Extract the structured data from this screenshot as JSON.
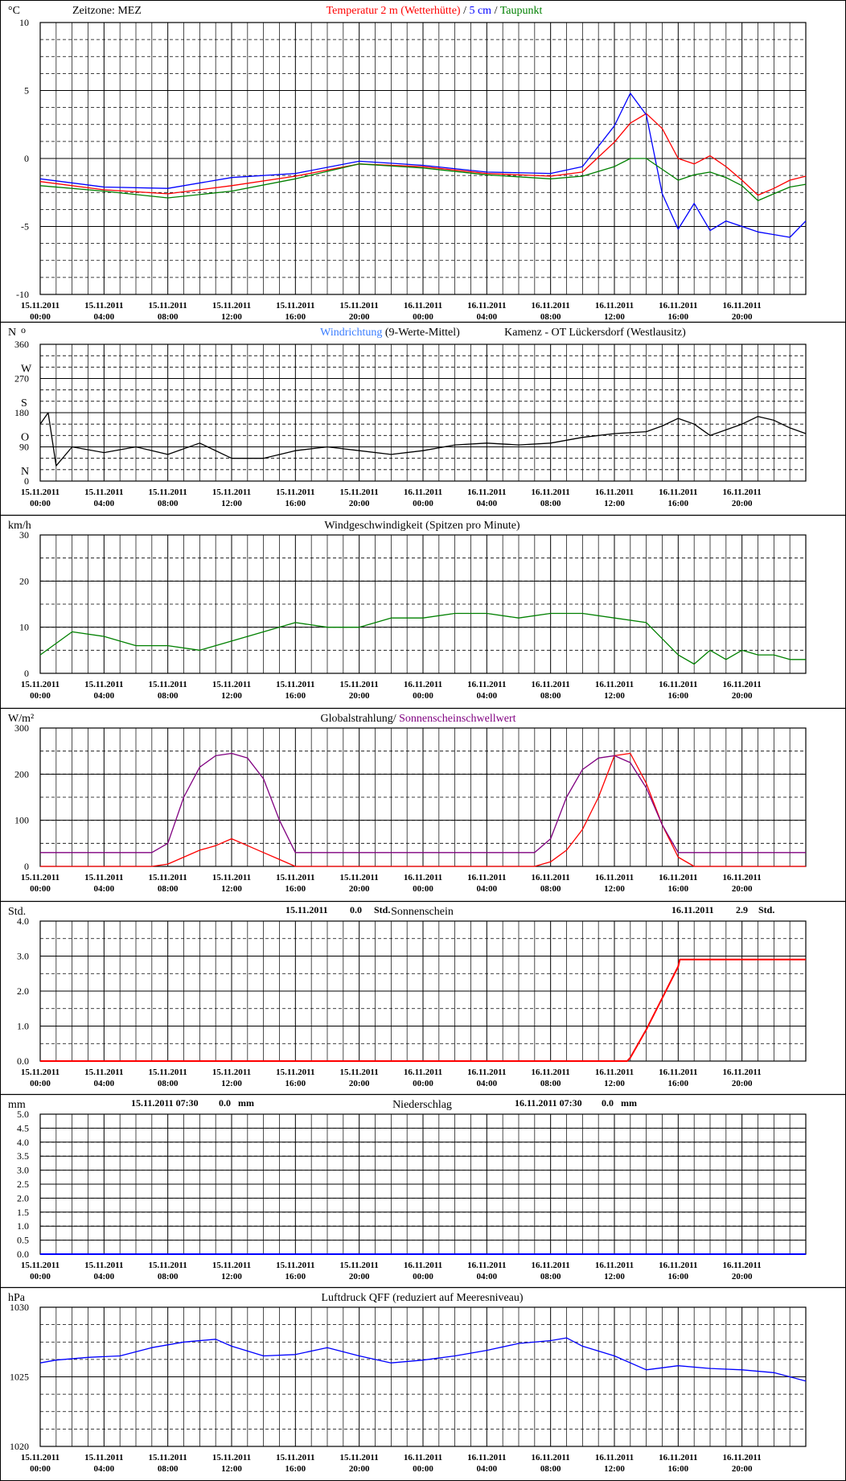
{
  "x_labels": [
    [
      "15.11.2011",
      "00:00"
    ],
    [
      "15.11.2011",
      "04:00"
    ],
    [
      "15.11.2011",
      "08:00"
    ],
    [
      "15.11.2011",
      "12:00"
    ],
    [
      "15.11.2011",
      "16:00"
    ],
    [
      "15.11.2011",
      "20:00"
    ],
    [
      "16.11.2011",
      "00:00"
    ],
    [
      "16.11.2011",
      "04:00"
    ],
    [
      "16.11.2011",
      "08:00"
    ],
    [
      "16.11.2011",
      "12:00"
    ],
    [
      "16.11.2011",
      "16:00"
    ],
    [
      "16.11.2011",
      "20:00"
    ]
  ],
  "colors": {
    "temp_2m": "#ff0000",
    "temp_5cm": "#0000ff",
    "dewpoint": "#008000",
    "wind_dir": "#3a7dff",
    "wind_dir_mean": "#000000",
    "wind_speed": "#008000",
    "radiation": "#ff0000",
    "sun_threshold": "#800080",
    "sunshine": "#ff0000",
    "precip": "#0000ff",
    "pressure": "#0000ff"
  },
  "chart_data": [
    {
      "type": "line",
      "id": "temperature",
      "unit": "°C",
      "zone_label": "Zeitzone: MEZ",
      "title_parts": [
        {
          "text": "Temperatur 2 m (Wetterhütte)",
          "color": "#ff0000"
        },
        {
          "text": "  /  ",
          "color": "#000000"
        },
        {
          "text": "5 cm",
          "color": "#0000ff"
        },
        {
          "text": " / ",
          "color": "#000000"
        },
        {
          "text": "Taupunkt",
          "color": "#008000"
        }
      ],
      "ylim": [
        -10,
        10
      ],
      "yticks": [
        "10",
        "5",
        "0",
        "-5",
        "-10"
      ],
      "x_hours": [
        0,
        4,
        8,
        12,
        16,
        20,
        24,
        28,
        32,
        34,
        36,
        37,
        38,
        39,
        40,
        41,
        42,
        43,
        44,
        45,
        46,
        47,
        48
      ],
      "series": [
        {
          "name": "Temperatur 2 m (Wetterhütte)",
          "color": "#ff0000",
          "values": [
            -1.7,
            -2.3,
            -2.6,
            -2.0,
            -1.3,
            -0.4,
            -0.6,
            -1.1,
            -1.3,
            -1.0,
            1.2,
            2.6,
            3.3,
            2.2,
            0.0,
            -0.4,
            0.2,
            -0.6,
            -1.6,
            -2.7,
            -2.2,
            -1.6,
            -1.3
          ]
        },
        {
          "name": "5 cm",
          "color": "#0000ff",
          "values": [
            -1.5,
            -2.1,
            -2.2,
            -1.4,
            -1.1,
            -0.2,
            -0.5,
            -1.0,
            -1.1,
            -0.6,
            2.4,
            4.8,
            3.2,
            -2.6,
            -5.2,
            -3.3,
            -5.3,
            -4.6,
            -5.0,
            -5.4,
            -5.6,
            -5.8,
            -4.6
          ]
        },
        {
          "name": "Taupunkt",
          "color": "#008000",
          "values": [
            -2.0,
            -2.4,
            -2.9,
            -2.4,
            -1.5,
            -0.4,
            -0.7,
            -1.2,
            -1.5,
            -1.3,
            -0.6,
            0.0,
            0.0,
            -0.8,
            -1.6,
            -1.2,
            -1.0,
            -1.4,
            -2.0,
            -3.1,
            -2.6,
            -2.1,
            -1.9
          ]
        }
      ]
    },
    {
      "type": "line",
      "id": "wind_direction",
      "unit": "N",
      "unit_degree": "o",
      "title_parts": [
        {
          "text": "Windrichtung",
          "color": "#3a7dff"
        },
        {
          "text": " (9-Werte-Mittel)",
          "color": "#000000"
        }
      ],
      "station": "Kamenz - OT Lückersdorf (Westlausitz)",
      "ylim": [
        0,
        360
      ],
      "yticks": [
        "360",
        "270",
        "180",
        "90",
        "0"
      ],
      "compass": [
        "W",
        "S",
        "O",
        "N"
      ],
      "x_hours": [
        0,
        0.5,
        1,
        2,
        4,
        6,
        8,
        10,
        12,
        14,
        16,
        18,
        20,
        22,
        24,
        26,
        28,
        30,
        32,
        34,
        36,
        38,
        39,
        40,
        41,
        42,
        44,
        45,
        46,
        47,
        48
      ],
      "series": [
        {
          "name": "Windrichtung (9-Werte-Mittel)",
          "color": "#000000",
          "values": [
            150,
            180,
            40,
            90,
            75,
            90,
            70,
            100,
            60,
            60,
            80,
            90,
            80,
            70,
            80,
            95,
            100,
            95,
            100,
            115,
            125,
            130,
            145,
            165,
            150,
            120,
            150,
            170,
            160,
            140,
            125
          ]
        }
      ]
    },
    {
      "type": "line",
      "id": "wind_speed",
      "unit": "km/h",
      "title": "Windgeschwindigkeit (Spitzen pro Minute)",
      "ylim": [
        0,
        30
      ],
      "yticks": [
        "30",
        "20",
        "10",
        "0"
      ],
      "x_hours": [
        0,
        2,
        4,
        6,
        8,
        10,
        12,
        14,
        16,
        18,
        20,
        22,
        24,
        26,
        28,
        30,
        32,
        34,
        36,
        38,
        40,
        41,
        42,
        43,
        44,
        45,
        46,
        47,
        48
      ],
      "series": [
        {
          "name": "Windgeschwindigkeit (Spitzen pro Minute)",
          "color": "#008000",
          "values": [
            4,
            9,
            8,
            6,
            6,
            5,
            7,
            9,
            11,
            10,
            10,
            12,
            12,
            13,
            13,
            12,
            13,
            13,
            12,
            11,
            4,
            2,
            5,
            3,
            5,
            4,
            4,
            3,
            3
          ]
        }
      ]
    },
    {
      "type": "line",
      "id": "radiation",
      "unit": "W/m²",
      "title_parts": [
        {
          "text": "Globalstrahlung/",
          "color": "#000000"
        },
        {
          "text": " Sonnenscheinschwellwert",
          "color": "#800080"
        }
      ],
      "ylim": [
        0,
        300
      ],
      "yticks": [
        "300",
        "200",
        "100",
        "0"
      ],
      "x_hours": [
        0,
        7,
        8,
        9,
        10,
        11,
        12,
        13,
        14,
        15,
        16,
        17,
        30,
        31,
        32,
        33,
        34,
        35,
        36,
        37,
        38,
        39,
        40,
        41,
        42,
        48
      ],
      "series": [
        {
          "name": "Globalstrahlung",
          "color": "#ff0000",
          "values": [
            0,
            0,
            5,
            20,
            35,
            45,
            60,
            45,
            30,
            15,
            0,
            0,
            0,
            0,
            10,
            35,
            80,
            150,
            240,
            245,
            180,
            90,
            20,
            0,
            0,
            0
          ]
        },
        {
          "name": "Sonnenscheinschwellwert",
          "color": "#800080",
          "values": [
            30,
            30,
            50,
            150,
            215,
            240,
            245,
            235,
            190,
            100,
            30,
            30,
            30,
            30,
            60,
            150,
            210,
            235,
            240,
            225,
            170,
            90,
            30,
            30,
            30,
            30
          ]
        }
      ]
    },
    {
      "type": "line",
      "id": "sunshine",
      "unit": "Std.",
      "title": "Sonnenschein",
      "left_summary": {
        "date": "15.11.2011",
        "value": "0.0",
        "unit": "Std."
      },
      "right_summary": {
        "date": "16.11.2011",
        "value": "2.9",
        "unit": "Std."
      },
      "ylim": [
        0,
        4
      ],
      "yticks": [
        "4.0",
        "3.0",
        "2.0",
        "1.0",
        "0.0"
      ],
      "x_hours": [
        0,
        36.8,
        37,
        38,
        39,
        40,
        40.1,
        48
      ],
      "series": [
        {
          "name": "Sonnenschein",
          "color": "#ff0000",
          "values": [
            0,
            0,
            0.1,
            0.9,
            1.8,
            2.7,
            2.9,
            2.9
          ]
        }
      ]
    },
    {
      "type": "line",
      "id": "precipitation",
      "unit": "mm",
      "title": "Niederschlag",
      "left_summary": {
        "date": "15.11.2011 07:30",
        "value": "0.0",
        "unit": "mm"
      },
      "right_summary": {
        "date": "16.11.2011 07:30",
        "value": "0.0",
        "unit": "mm"
      },
      "ylim": [
        0,
        5
      ],
      "yticks": [
        "5.0",
        "4.5",
        "4.0",
        "3.5",
        "3.0",
        "2.5",
        "2.0",
        "1.5",
        "1.0",
        "0.5",
        "0.0"
      ],
      "x_hours": [
        0,
        48
      ],
      "series": [
        {
          "name": "Niederschlag",
          "color": "#0000ff",
          "values": [
            0,
            0
          ]
        }
      ]
    },
    {
      "type": "line",
      "id": "pressure",
      "unit": "hPa",
      "title": "Luftdruck QFF (reduziert auf Meeresniveau)",
      "ylim": [
        1020,
        1030
      ],
      "yticks": [
        "1030",
        "1025",
        "1020"
      ],
      "x_hours": [
        0,
        1,
        3,
        5,
        7,
        9,
        11,
        12,
        14,
        16,
        18,
        20,
        22,
        24,
        26,
        28,
        30,
        32,
        33,
        34,
        36,
        38,
        40,
        42,
        44,
        46,
        48
      ],
      "series": [
        {
          "name": "Luftdruck QFF (reduziert auf Meeresniveau)",
          "color": "#0000ff",
          "values": [
            1026.0,
            1026.2,
            1026.4,
            1026.5,
            1027.1,
            1027.5,
            1027.7,
            1027.2,
            1026.5,
            1026.6,
            1027.1,
            1026.5,
            1026.0,
            1026.2,
            1026.5,
            1026.9,
            1027.4,
            1027.6,
            1027.8,
            1027.2,
            1026.5,
            1025.5,
            1025.8,
            1025.6,
            1025.5,
            1025.3,
            1024.7
          ]
        }
      ]
    }
  ]
}
